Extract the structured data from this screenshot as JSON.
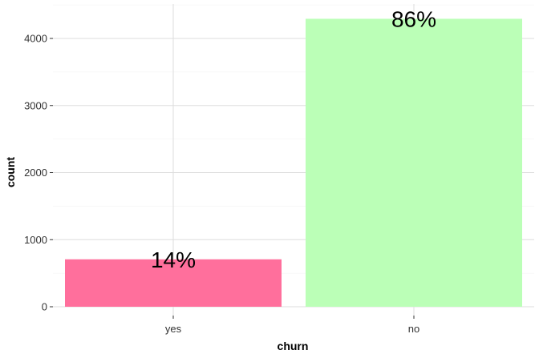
{
  "chart_data": {
    "type": "bar",
    "categories": [
      "yes",
      "no"
    ],
    "values": [
      707,
      4293
    ],
    "data_labels": [
      "14%",
      "86%"
    ],
    "bar_colors": [
      "#FF6F9C",
      "#BBFFB7"
    ],
    "xlabel": "churn",
    "ylabel": "count",
    "ylim": [
      0,
      4500
    ],
    "yticks": [
      0,
      1000,
      2000,
      3000,
      4000
    ],
    "ytick_labels": [
      "0",
      "1000",
      "2000",
      "3000",
      "4000"
    ],
    "grid": true,
    "legend": "none"
  }
}
